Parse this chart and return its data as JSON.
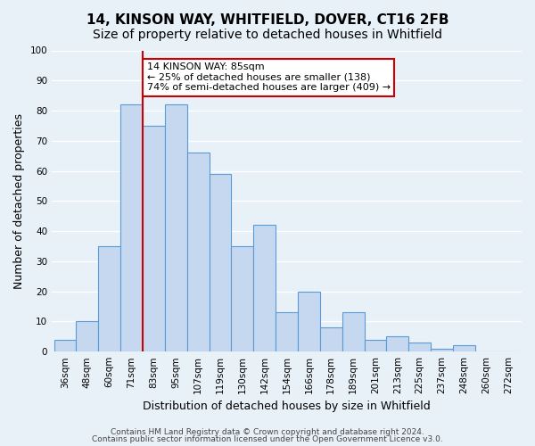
{
  "title": "14, KINSON WAY, WHITFIELD, DOVER, CT16 2FB",
  "subtitle": "Size of property relative to detached houses in Whitfield",
  "xlabel": "Distribution of detached houses by size in Whitfield",
  "ylabel": "Number of detached properties",
  "bar_color": "#c5d8f0",
  "bar_edge_color": "#5b9bd5",
  "background_color": "#e8f0f8",
  "grid_color": "#ffffff",
  "bins": [
    "36sqm",
    "48sqm",
    "60sqm",
    "71sqm",
    "83sqm",
    "95sqm",
    "107sqm",
    "119sqm",
    "130sqm",
    "142sqm",
    "154sqm",
    "166sqm",
    "178sqm",
    "189sqm",
    "201sqm",
    "213sqm",
    "225sqm",
    "237sqm",
    "248sqm",
    "260sqm",
    "272sqm"
  ],
  "values": [
    4,
    10,
    35,
    82,
    75,
    82,
    66,
    59,
    35,
    42,
    13,
    20,
    8,
    13,
    4,
    5,
    3,
    1,
    2,
    0,
    0
  ],
  "ylim": [
    0,
    100
  ],
  "vline_color": "#cc0000",
  "vline_pos": 3.5,
  "annotation_title": "14 KINSON WAY: 85sqm",
  "annotation_line1": "← 25% of detached houses are smaller (138)",
  "annotation_line2": "74% of semi-detached houses are larger (409) →",
  "annotation_box_color": "#ffffff",
  "annotation_box_edge": "#cc0000",
  "footer_line1": "Contains HM Land Registry data © Crown copyright and database right 2024.",
  "footer_line2": "Contains public sector information licensed under the Open Government Licence v3.0.",
  "title_fontsize": 11,
  "subtitle_fontsize": 10,
  "ylabel_fontsize": 9,
  "xlabel_fontsize": 9,
  "tick_fontsize": 7.5,
  "annotation_fontsize": 8,
  "footer_fontsize": 6.5
}
